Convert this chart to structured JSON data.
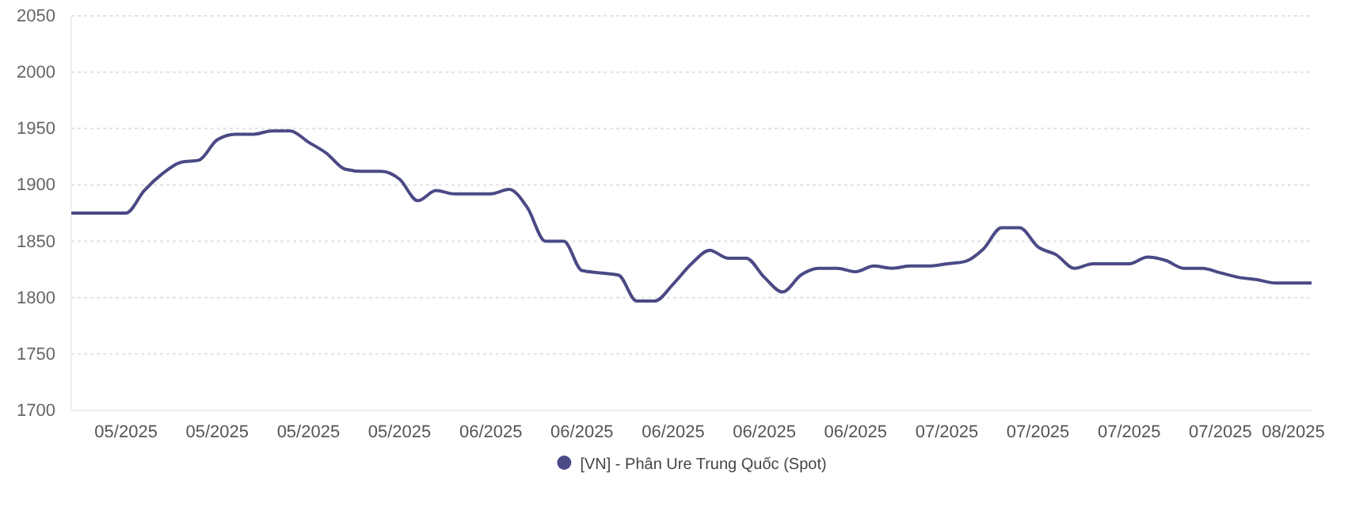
{
  "chart_data": {
    "type": "line",
    "categories": [
      null,
      null,
      null,
      "05/2025",
      null,
      null,
      null,
      null,
      "05/2025",
      null,
      null,
      null,
      null,
      "05/2025",
      null,
      null,
      null,
      null,
      "05/2025",
      null,
      null,
      null,
      null,
      "06/2025",
      null,
      null,
      null,
      null,
      "06/2025",
      null,
      null,
      null,
      null,
      "06/2025",
      null,
      null,
      null,
      null,
      "06/2025",
      null,
      null,
      null,
      null,
      "06/2025",
      null,
      null,
      null,
      null,
      "07/2025",
      null,
      null,
      null,
      null,
      "07/2025",
      null,
      null,
      null,
      null,
      "07/2025",
      null,
      null,
      null,
      null,
      "07/2025",
      null,
      null,
      null,
      "08/2025",
      null
    ],
    "series": [
      {
        "name": "[VN] - Phân Ure Trung Quốc (Spot)",
        "color": "#4b4a86",
        "values": [
          1875,
          1875,
          1875,
          1875,
          1895,
          1910,
          1920,
          1922,
          1940,
          1945,
          1945,
          1948,
          1948,
          1938,
          1928,
          1914,
          1912,
          1912,
          1905,
          1886,
          1895,
          1892,
          1892,
          1892,
          1896,
          1880,
          1850,
          1850,
          1824,
          1822,
          1820,
          1797,
          1797,
          1812,
          1830,
          1842,
          1835,
          1835,
          1818,
          1805,
          1820,
          1826,
          1826,
          1823,
          1828,
          1826,
          1828,
          1828,
          1830,
          1832,
          1843,
          1862,
          1862,
          1845,
          1838,
          1826,
          1830,
          1830,
          1830,
          1836,
          1833,
          1826,
          1826,
          1822,
          1818,
          1816,
          1813,
          1813,
          1813
        ]
      }
    ],
    "ylim": [
      1700,
      2050
    ],
    "yticks": [
      1700,
      1750,
      1800,
      1850,
      1900,
      1950,
      2000,
      2050
    ],
    "grid": "y",
    "legend": "bottom",
    "marker": "none",
    "line_style": "solid"
  }
}
